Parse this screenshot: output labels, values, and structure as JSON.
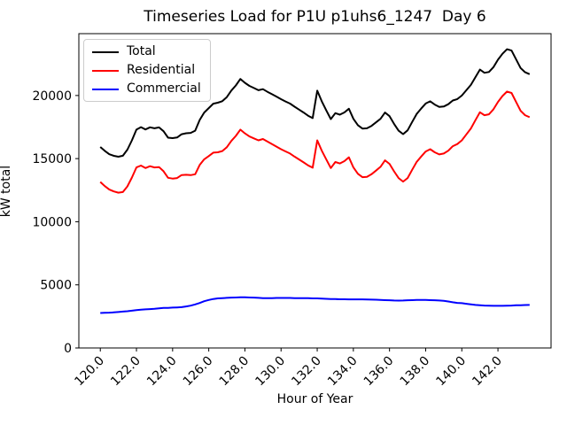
{
  "figure": {
    "title": "Timeseries Load for P1U p1uhs6_1247  Day 6",
    "xlabel": "Hour of Year",
    "ylabel": "kW total",
    "background_color": "#ffffff"
  },
  "chart_data": {
    "type": "line",
    "title": "Timeseries Load for P1U p1uhs6_1247  Day 6",
    "xlabel": "Hour of Year",
    "ylabel": "kW total",
    "grid": false,
    "legend_position": "upper left",
    "xlim": [
      118.8125,
      144.9375
    ],
    "ylim": [
      0,
      24900
    ],
    "x_ticks": [
      120,
      122,
      124,
      126,
      128,
      130,
      132,
      134,
      136,
      138,
      140,
      142
    ],
    "x_tick_labels": [
      "120.0",
      "122.0",
      "124.0",
      "126.0",
      "128.0",
      "130.0",
      "132.0",
      "134.0",
      "136.0",
      "138.0",
      "140.0",
      "142.0"
    ],
    "x_tick_rotation_deg": 45,
    "y_ticks": [
      0,
      5000,
      10000,
      15000,
      20000
    ],
    "y_tick_labels": [
      "0",
      "5000",
      "10000",
      "15000",
      "20000"
    ],
    "x": [
      120.0,
      120.25,
      120.5,
      120.75,
      121.0,
      121.25,
      121.5,
      121.75,
      122.0,
      122.25,
      122.5,
      122.75,
      123.0,
      123.25,
      123.5,
      123.75,
      124.0,
      124.25,
      124.5,
      124.75,
      125.0,
      125.25,
      125.5,
      125.75,
      126.0,
      126.25,
      126.5,
      126.75,
      127.0,
      127.25,
      127.5,
      127.75,
      128.0,
      128.25,
      128.5,
      128.75,
      129.0,
      129.25,
      129.5,
      129.75,
      130.0,
      130.25,
      130.5,
      130.75,
      131.0,
      131.25,
      131.5,
      131.75,
      132.0,
      132.25,
      132.5,
      132.75,
      133.0,
      133.25,
      133.5,
      133.75,
      134.0,
      134.25,
      134.5,
      134.75,
      135.0,
      135.25,
      135.5,
      135.75,
      136.0,
      136.25,
      136.5,
      136.75,
      137.0,
      137.25,
      137.5,
      137.75,
      138.0,
      138.25,
      138.5,
      138.75,
      139.0,
      139.25,
      139.5,
      139.75,
      140.0,
      140.25,
      140.5,
      140.75,
      141.0,
      141.25,
      141.5,
      141.75,
      142.0,
      142.25,
      142.5,
      142.75,
      143.0,
      143.25,
      143.5,
      143.75
    ],
    "series": [
      {
        "name": "Total",
        "color": "#000000",
        "values": [
          15920,
          15610,
          15350,
          15220,
          15150,
          15230,
          15710,
          16450,
          17300,
          17490,
          17310,
          17480,
          17400,
          17470,
          17170,
          16660,
          16620,
          16670,
          16930,
          17010,
          17040,
          17210,
          18060,
          18650,
          19000,
          19350,
          19430,
          19550,
          19870,
          20390,
          20800,
          21310,
          21010,
          20760,
          20590,
          20420,
          20500,
          20290,
          20100,
          19910,
          19710,
          19530,
          19360,
          19110,
          18880,
          18650,
          18400,
          18210,
          20380,
          19540,
          18820,
          18130,
          18600,
          18480,
          18660,
          18950,
          18150,
          17650,
          17380,
          17400,
          17590,
          17870,
          18150,
          18650,
          18360,
          17750,
          17210,
          16940,
          17240,
          17900,
          18540,
          18965,
          19365,
          19540,
          19280,
          19090,
          19130,
          19310,
          19605,
          19720,
          20000,
          20420,
          20840,
          21450,
          22055,
          21800,
          21860,
          22250,
          22835,
          23305,
          23665,
          23560,
          22875,
          22180,
          21840,
          21690
        ]
      },
      {
        "name": "Residential",
        "color": "#ff0000",
        "values": [
          13150,
          12820,
          12550,
          12400,
          12300,
          12350,
          12800,
          13500,
          14300,
          14450,
          14250,
          14400,
          14300,
          14330,
          14000,
          13480,
          13420,
          13460,
          13700,
          13720,
          13690,
          13760,
          14500,
          14950,
          15200,
          15470,
          15500,
          15600,
          15900,
          16400,
          16800,
          17300,
          17000,
          16760,
          16600,
          16450,
          16550,
          16350,
          16150,
          15950,
          15750,
          15570,
          15400,
          15160,
          14930,
          14700,
          14460,
          14280,
          16450,
          15630,
          14930,
          14250,
          14730,
          14620,
          14800,
          15100,
          14300,
          13800,
          13530,
          13560,
          13760,
          14050,
          14350,
          14860,
          14580,
          13990,
          13460,
          13180,
          13460,
          14110,
          14740,
          15165,
          15565,
          15750,
          15500,
          15330,
          15400,
          15630,
          15985,
          16150,
          16450,
          16920,
          17390,
          18040,
          18675,
          18440,
          18510,
          18910,
          19495,
          19965,
          20315,
          20200,
          19495,
          18790,
          18440,
          18280
        ]
      },
      {
        "name": "Commercial",
        "color": "#0000ff",
        "values": [
          2770,
          2790,
          2800,
          2820,
          2850,
          2880,
          2910,
          2950,
          3000,
          3040,
          3060,
          3080,
          3100,
          3140,
          3170,
          3180,
          3200,
          3210,
          3230,
          3290,
          3350,
          3450,
          3560,
          3700,
          3800,
          3880,
          3930,
          3950,
          3970,
          3990,
          4000,
          4010,
          4010,
          4000,
          3990,
          3970,
          3950,
          3940,
          3950,
          3960,
          3960,
          3960,
          3960,
          3950,
          3950,
          3950,
          3940,
          3930,
          3930,
          3910,
          3890,
          3880,
          3870,
          3860,
          3860,
          3850,
          3850,
          3850,
          3850,
          3840,
          3830,
          3820,
          3800,
          3790,
          3780,
          3760,
          3750,
          3760,
          3780,
          3790,
          3800,
          3800,
          3800,
          3790,
          3780,
          3760,
          3730,
          3680,
          3620,
          3570,
          3550,
          3500,
          3450,
          3410,
          3380,
          3360,
          3350,
          3340,
          3340,
          3340,
          3350,
          3360,
          3380,
          3390,
          3400,
          3410
        ]
      }
    ]
  }
}
